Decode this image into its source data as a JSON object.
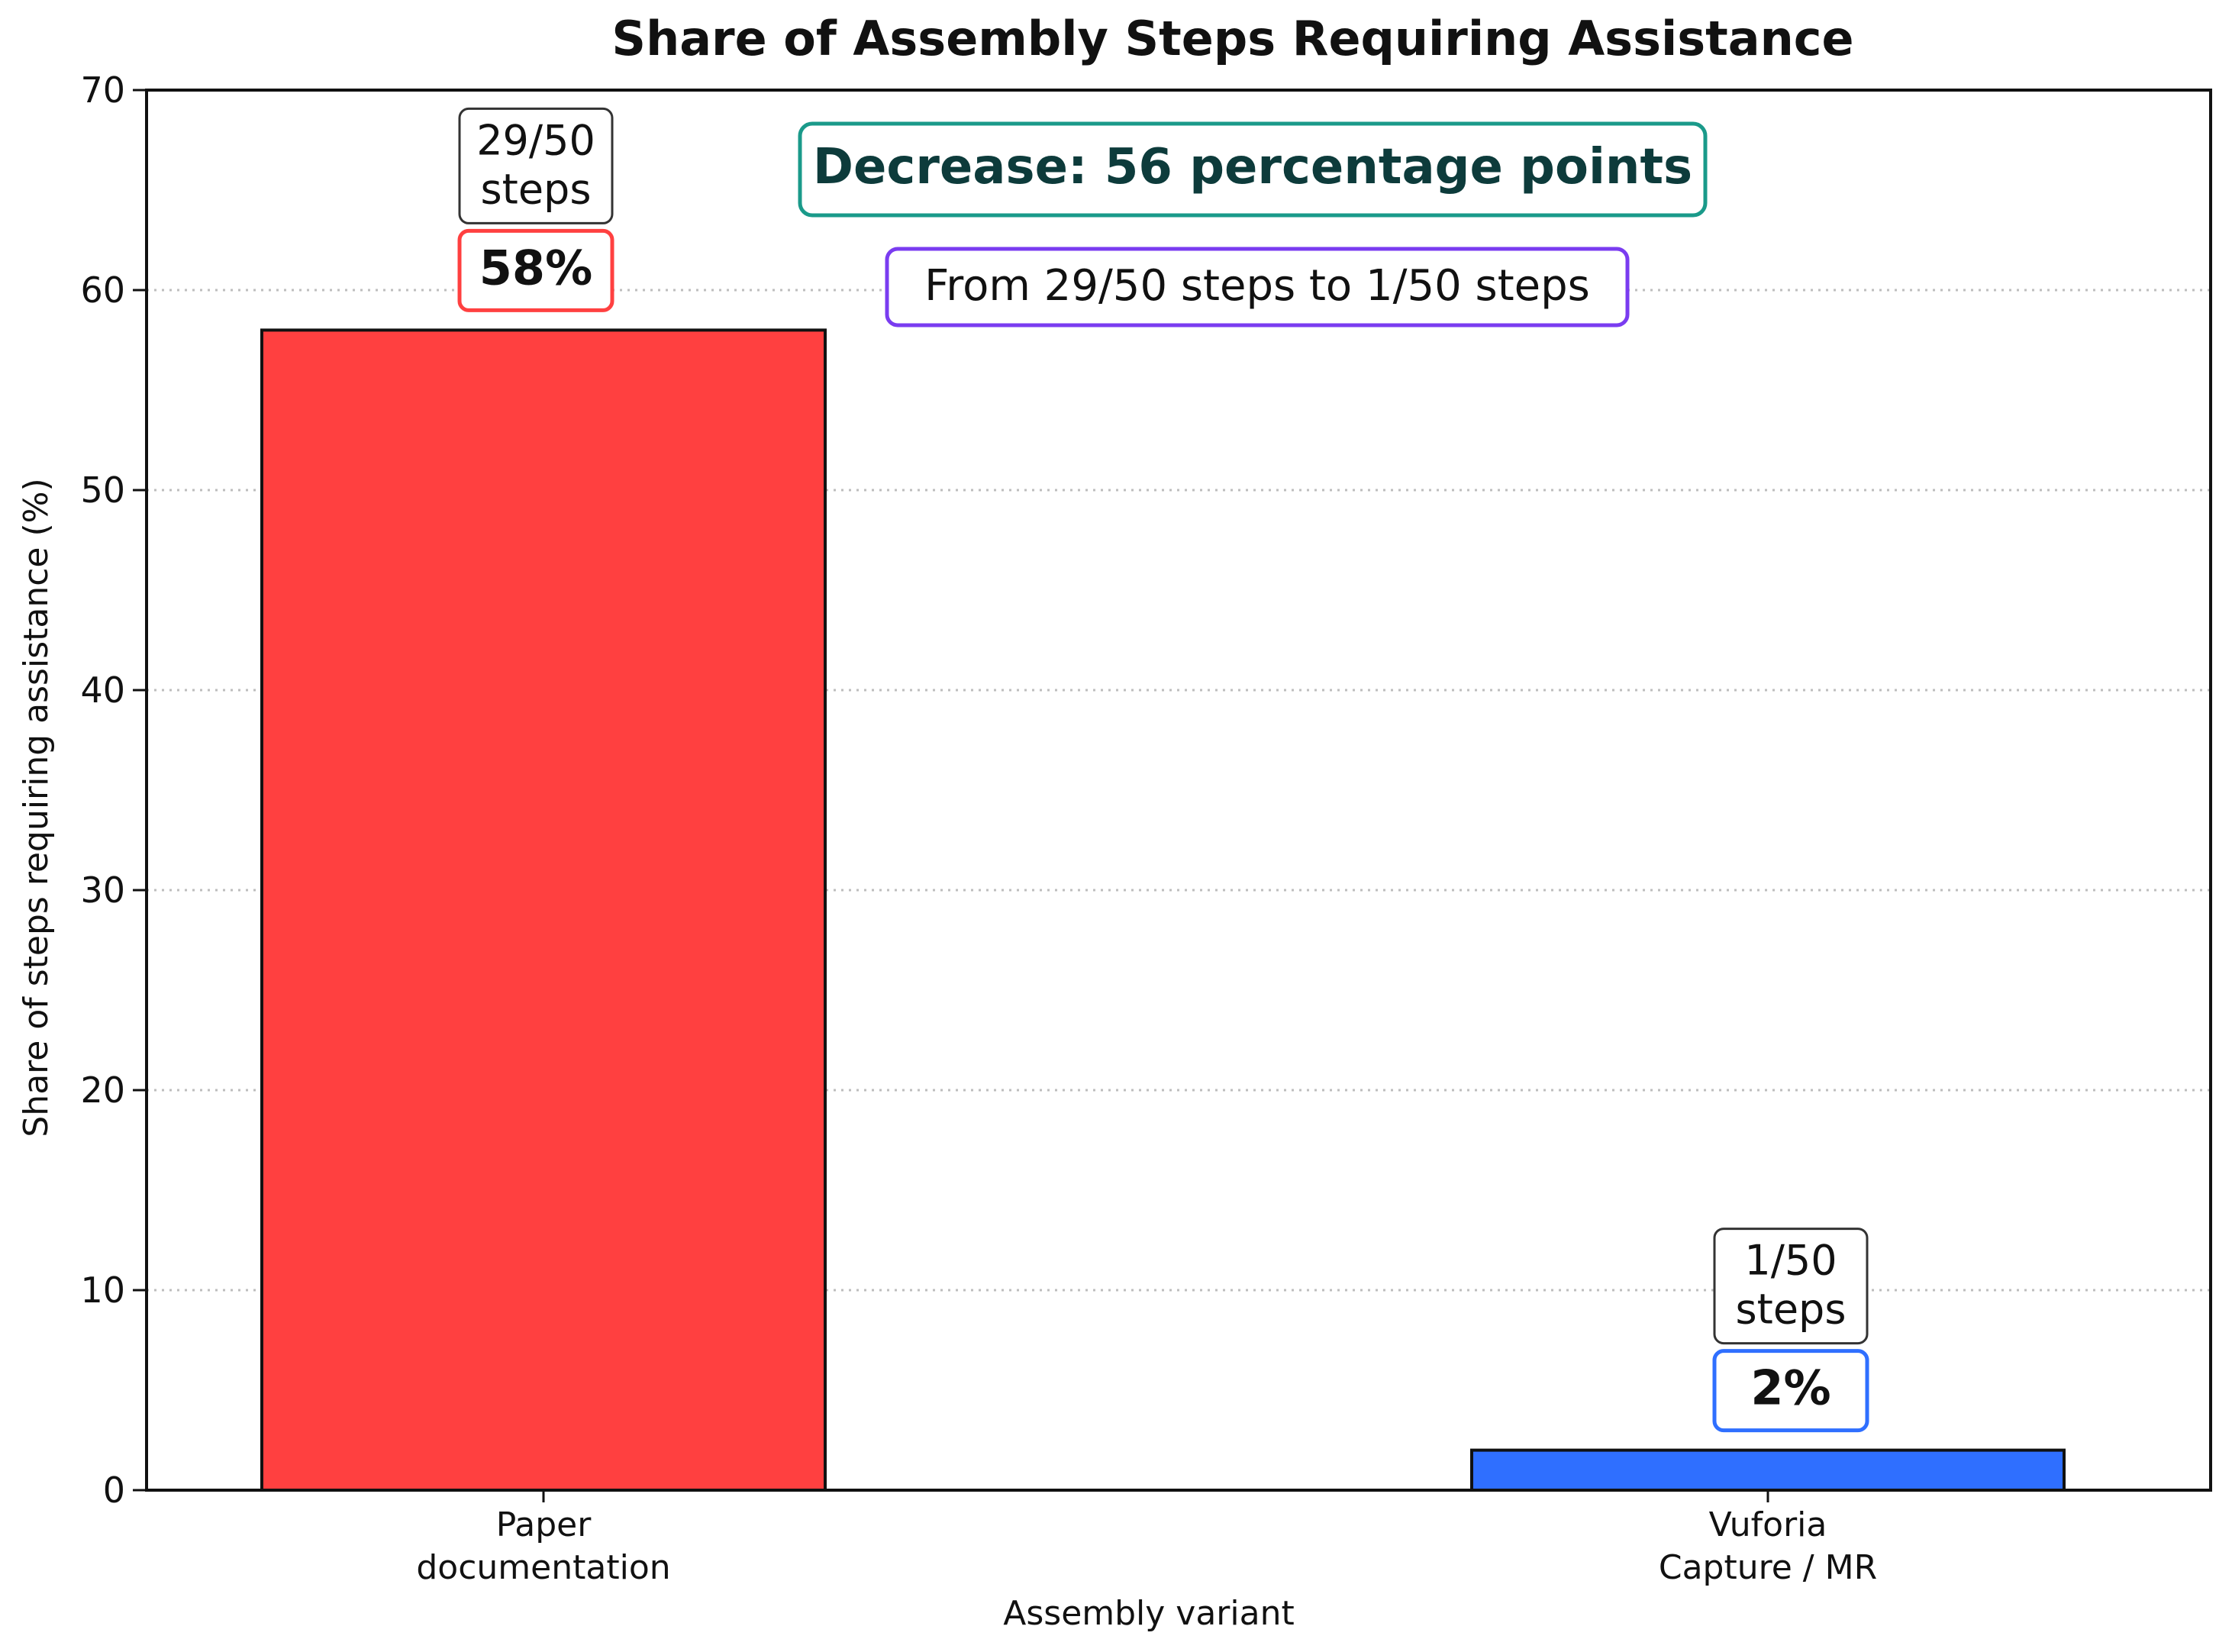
{
  "chart_data": {
    "type": "bar",
    "title": "Share of Assembly Steps Requiring Assistance",
    "xlabel": "Assembly variant",
    "ylabel": "Share of steps requiring assistance (%)",
    "ylim": [
      0,
      70
    ],
    "yticks": [
      0,
      10,
      20,
      30,
      40,
      50,
      60,
      70
    ],
    "grid": "horizontal dotted",
    "categories": [
      [
        "Paper",
        "documentation"
      ],
      [
        "Vuforia",
        "Capture / MR"
      ]
    ],
    "values": [
      58,
      2
    ],
    "colors": [
      "#ff4040",
      "#2f6fff"
    ],
    "value_labels": [
      "58%",
      "2%"
    ],
    "count_labels": [
      [
        "29/50",
        "steps"
      ],
      [
        "1/50",
        "steps"
      ]
    ],
    "annotations": [
      {
        "text": "Decrease: 56 percentage points",
        "border_color": "#1a9a8a",
        "text_color": "#0d3b3b"
      },
      {
        "text": "From 29/50 steps to 1/50 steps",
        "border_color": "#7a3cf0",
        "text_color": "#111111"
      }
    ]
  }
}
